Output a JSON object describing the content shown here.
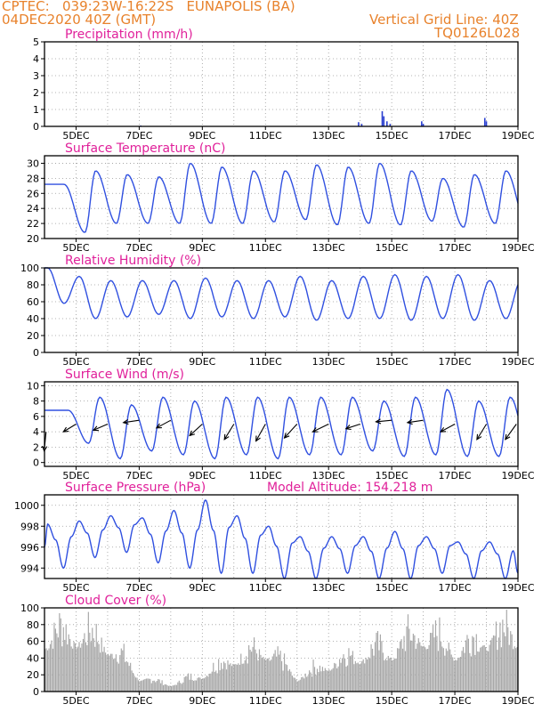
{
  "header": {
    "line1_left": "CPTEC:   039:23W-16:22S   EUNAPOLIS (BA)",
    "line2_left": "04DEC2020 40Z (GMT)",
    "line1_right": "Vertical Grid Line: 40Z",
    "line2_right": "TQ0126L028",
    "color": "#e8822c"
  },
  "colors": {
    "title": "#e0209a",
    "line": "#3050e0",
    "bar": "#2a3fd0",
    "cloud": "#a8a8a8",
    "wind_arrow": "#000000"
  },
  "chart_data": [
    {
      "type": "bar",
      "title": "Precipitation (mm/h)",
      "ylim": [
        0,
        5
      ],
      "yticks": [
        0,
        1,
        2,
        3,
        4,
        5
      ],
      "xticks": [
        "5DEC",
        "7DEC",
        "9DEC",
        "11DEC",
        "13DEC",
        "15DEC",
        "17DEC",
        "19DEC"
      ],
      "x_range_days": [
        4,
        19
      ],
      "events": [
        {
          "day": 7.05,
          "value": 0.05
        },
        {
          "day": 13.95,
          "value": 0.25
        },
        {
          "day": 14.05,
          "value": 0.15
        },
        {
          "day": 14.7,
          "value": 0.9
        },
        {
          "day": 14.75,
          "value": 0.6
        },
        {
          "day": 14.85,
          "value": 0.3
        },
        {
          "day": 14.95,
          "value": 0.15
        },
        {
          "day": 15.95,
          "value": 0.3
        },
        {
          "day": 16.0,
          "value": 0.15
        },
        {
          "day": 17.95,
          "value": 0.5
        },
        {
          "day": 18.0,
          "value": 0.3
        }
      ]
    },
    {
      "type": "line",
      "title": "Surface Temperature (nC)",
      "ylim": [
        20,
        31
      ],
      "yticks": [
        20,
        22,
        24,
        26,
        28,
        30
      ],
      "xticks": [
        "5DEC",
        "7DEC",
        "9DEC",
        "11DEC",
        "13DEC",
        "15DEC",
        "17DEC",
        "19DEC"
      ],
      "x_range_days": [
        4,
        19
      ],
      "daily_max": [
        27.2,
        29.0,
        28.5,
        28.2,
        30.0,
        29.5,
        29.0,
        29.0,
        29.8,
        29.5,
        30.0,
        29.0,
        28.0,
        28.5,
        29.0,
        29.5
      ],
      "daily_min": [
        20.8,
        22.0,
        22.0,
        22.0,
        22.0,
        22.0,
        22.2,
        22.5,
        21.8,
        22.0,
        21.8,
        22.3,
        21.5,
        22.0,
        22.0
      ]
    },
    {
      "type": "line",
      "title": "Relative Humidity (%)",
      "ylim": [
        0,
        100
      ],
      "yticks": [
        0,
        20,
        40,
        60,
        80,
        100
      ],
      "xticks": [
        "5DEC",
        "7DEC",
        "9DEC",
        "11DEC",
        "13DEC",
        "15DEC",
        "17DEC",
        "19DEC"
      ],
      "x_range_days": [
        4,
        19
      ],
      "daily_max": [
        100,
        90,
        85,
        85,
        85,
        88,
        85,
        85,
        90,
        85,
        90,
        92,
        90,
        92,
        85,
        85
      ],
      "daily_min": [
        58,
        40,
        42,
        45,
        40,
        42,
        40,
        42,
        38,
        40,
        40,
        38,
        40,
        38,
        40
      ]
    },
    {
      "type": "line",
      "title": "Surface Wind (m/s)",
      "ylim": [
        -0.5,
        10.5
      ],
      "yticks": [
        0,
        2,
        4,
        6,
        8,
        10
      ],
      "xticks": [
        "5DEC",
        "7DEC",
        "9DEC",
        "11DEC",
        "13DEC",
        "15DEC",
        "17DEC",
        "19DEC"
      ],
      "x_range_days": [
        4,
        19
      ],
      "daily_max": [
        6.8,
        8.5,
        7.5,
        8.5,
        8.0,
        8.5,
        8.5,
        8.5,
        8.5,
        8.5,
        8.0,
        8.5,
        9.5,
        8.0,
        8.5,
        8.5
      ],
      "daily_min": [
        2.5,
        0.5,
        1.5,
        1.0,
        0.5,
        1.0,
        0.5,
        1.0,
        1.0,
        1.5,
        0.8,
        1.0,
        0.8,
        0.8,
        1.0
      ],
      "arrows": [
        {
          "day": 4.05,
          "y": 4.0,
          "dx": -0.06,
          "dy": -2.5
        },
        {
          "day": 5.0,
          "y": 5.0,
          "dx": -0.4,
          "dy": -1.0
        },
        {
          "day": 6.0,
          "y": 5.0,
          "dx": -0.45,
          "dy": -0.8
        },
        {
          "day": 7.0,
          "y": 5.5,
          "dx": -0.5,
          "dy": -0.3
        },
        {
          "day": 8.0,
          "y": 5.5,
          "dx": -0.45,
          "dy": -1.0
        },
        {
          "day": 9.0,
          "y": 5.0,
          "dx": -0.4,
          "dy": -1.5
        },
        {
          "day": 10.0,
          "y": 5.0,
          "dx": -0.3,
          "dy": -2.0
        },
        {
          "day": 11.0,
          "y": 5.0,
          "dx": -0.3,
          "dy": -2.2
        },
        {
          "day": 12.0,
          "y": 5.0,
          "dx": -0.4,
          "dy": -1.8
        },
        {
          "day": 13.0,
          "y": 5.0,
          "dx": -0.5,
          "dy": -1.0
        },
        {
          "day": 14.0,
          "y": 5.0,
          "dx": -0.45,
          "dy": -0.6
        },
        {
          "day": 15.0,
          "y": 5.5,
          "dx": -0.5,
          "dy": -0.2
        },
        {
          "day": 16.0,
          "y": 5.5,
          "dx": -0.5,
          "dy": -0.3
        },
        {
          "day": 17.0,
          "y": 5.0,
          "dx": -0.45,
          "dy": -1.0
        },
        {
          "day": 18.0,
          "y": 5.0,
          "dx": -0.3,
          "dy": -2.0
        },
        {
          "day": 18.95,
          "y": 5.0,
          "dx": -0.35,
          "dy": -2.0
        }
      ]
    },
    {
      "type": "line",
      "title": "Surface Pressure (hPa)",
      "annotation": "Model Altitude: 154.218 m",
      "ylim": [
        993,
        1001
      ],
      "yticks": [
        994,
        996,
        998,
        1000
      ],
      "xticks": [
        "5DEC",
        "7DEC",
        "9DEC",
        "11DEC",
        "13DEC",
        "15DEC",
        "17DEC",
        "19DEC"
      ],
      "x_range_days": [
        4,
        19
      ],
      "peaks": [
        998.2,
        998.5,
        999.0,
        998.8,
        999.5,
        1000.5,
        999.0,
        998.0,
        997.0,
        997.0,
        997.0,
        997.5,
        997.0,
        996.5,
        996.5
      ],
      "troughs": [
        994.0,
        995.0,
        995.5,
        994.5,
        994.0,
        993.5,
        993.5,
        993.0,
        993.0,
        993.5,
        993.0,
        993.0,
        993.5,
        993.0,
        993.0
      ]
    },
    {
      "type": "bar",
      "title": "Cloud Cover (%)",
      "ylim": [
        0,
        100
      ],
      "yticks": [
        0,
        20,
        40,
        60,
        80,
        100
      ],
      "xticks": [
        "5DEC",
        "7DEC",
        "9DEC",
        "11DEC",
        "13DEC",
        "15DEC",
        "17DEC",
        "19DEC"
      ],
      "x_range_days": [
        4,
        19
      ],
      "daily_profile": [
        {
          "day": 4,
          "level": 80
        },
        {
          "day": 5,
          "level": 85
        },
        {
          "day": 6,
          "level": 70
        },
        {
          "day": 7,
          "level": 20
        },
        {
          "day": 8,
          "level": 10
        },
        {
          "day": 9,
          "level": 25
        },
        {
          "day": 10,
          "level": 50
        },
        {
          "day": 11,
          "level": 60
        },
        {
          "day": 12,
          "level": 20
        },
        {
          "day": 13,
          "level": 40
        },
        {
          "day": 14,
          "level": 55
        },
        {
          "day": 15,
          "level": 60
        },
        {
          "day": 16,
          "level": 85
        },
        {
          "day": 17,
          "level": 60
        },
        {
          "day": 18,
          "level": 80
        },
        {
          "day": 19,
          "level": 85
        }
      ]
    }
  ]
}
